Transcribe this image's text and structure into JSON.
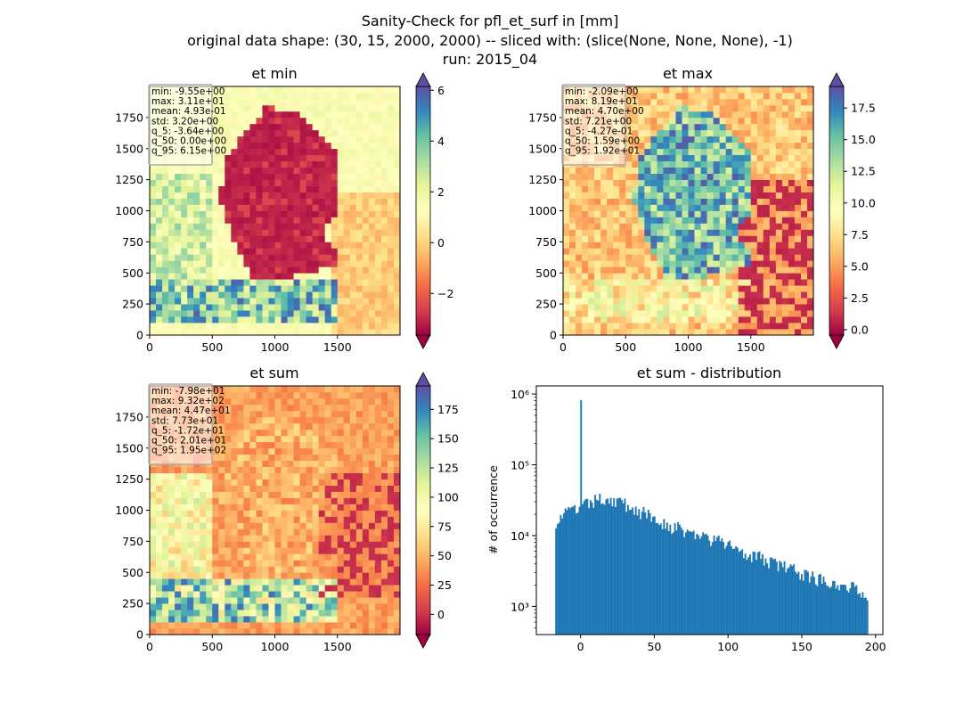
{
  "figure": {
    "title_lines": [
      "Sanity-Check for pfl_et_surf in [mm]",
      "original data shape: (30, 15, 2000, 2000) -- sliced with: (slice(None, None, None), -1)",
      "run: 2015_04"
    ]
  },
  "colormap": "Spectral",
  "chart_data": [
    {
      "type": "heatmap",
      "title": "et min",
      "x_ticks": [
        "0",
        "500",
        "1000",
        "1500"
      ],
      "y_ticks": [
        "0",
        "250",
        "500",
        "750",
        "1000",
        "1250",
        "1500",
        "1750"
      ],
      "xlim": [
        0,
        2000
      ],
      "ylim": [
        0,
        2000
      ],
      "colorbar": {
        "ticks": [
          "−2",
          "0",
          "2",
          "4",
          "6"
        ],
        "tick_values": [
          -2,
          0,
          2,
          4,
          6
        ],
        "range": [
          -3.64,
          6.15
        ],
        "extend": "both"
      },
      "stats": [
        "min: -9.55e+00",
        "max: 3.11e+01",
        "mean: 4.93e-01",
        "std: 3.20e+00",
        "q_5: -3.64e+00",
        "q_50: 0.00e+00",
        "q_95: 6.15e+00"
      ]
    },
    {
      "type": "heatmap",
      "title": "et max",
      "x_ticks": [
        "0",
        "500",
        "1000",
        "1500"
      ],
      "y_ticks": [
        "0",
        "250",
        "500",
        "750",
        "1000",
        "1250",
        "1500",
        "1750"
      ],
      "xlim": [
        0,
        2000
      ],
      "ylim": [
        0,
        2000
      ],
      "colorbar": {
        "ticks": [
          "0.0",
          "2.5",
          "5.0",
          "7.5",
          "10.0",
          "12.5",
          "15.0",
          "17.5"
        ],
        "tick_values": [
          0,
          2.5,
          5,
          7.5,
          10,
          12.5,
          15,
          17.5
        ],
        "range": [
          -0.43,
          19.2
        ],
        "extend": "both"
      },
      "stats": [
        "min: -2.09e+00",
        "max: 8.19e+01",
        "mean: 4.70e+00",
        "std: 7.21e+00",
        "q_5: -4.27e-01",
        "q_50: 1.59e+00",
        "q_95: 1.92e+01"
      ]
    },
    {
      "type": "heatmap",
      "title": "et sum",
      "x_ticks": [
        "0",
        "500",
        "1000",
        "1500"
      ],
      "y_ticks": [
        "0",
        "250",
        "500",
        "750",
        "1000",
        "1250",
        "1500",
        "1750"
      ],
      "xlim": [
        0,
        2000
      ],
      "ylim": [
        0,
        2000
      ],
      "colorbar": {
        "ticks": [
          "0",
          "25",
          "50",
          "75",
          "100",
          "125",
          "150",
          "175"
        ],
        "tick_values": [
          0,
          25,
          50,
          75,
          100,
          125,
          150,
          175
        ],
        "range": [
          -17.2,
          195
        ],
        "extend": "both"
      },
      "stats": [
        "min: -7.98e+01",
        "max: 9.32e+02",
        "mean: 4.47e+01",
        "std: 7.73e+01",
        "q_5: -1.72e+01",
        "q_50: 2.01e+01",
        "q_95: 1.95e+02"
      ]
    },
    {
      "type": "bar",
      "title": "et sum - distribution",
      "ylabel": "# of occurrence",
      "yscale": "log",
      "x_ticks": [
        "0",
        "50",
        "100",
        "150",
        "200"
      ],
      "x_tick_values": [
        0,
        50,
        100,
        150,
        200
      ],
      "y_ticks": [
        "10³",
        "10⁴",
        "10⁵",
        "10⁶"
      ],
      "y_tick_values": [
        1000,
        10000,
        100000,
        1000000
      ],
      "xlim": [
        -30,
        205
      ],
      "ylim": [
        400,
        1300000
      ],
      "bar_color": "#1f77b4",
      "spike": {
        "x": 0,
        "count": 820000
      },
      "profile": [
        {
          "x": -17.2,
          "count": 16000
        },
        {
          "x": -10,
          "count": 21000
        },
        {
          "x": -1,
          "count": 24000
        },
        {
          "x": 5,
          "count": 28000
        },
        {
          "x": 15,
          "count": 34000
        },
        {
          "x": 25,
          "count": 31000
        },
        {
          "x": 40,
          "count": 22000
        },
        {
          "x": 60,
          "count": 14000
        },
        {
          "x": 80,
          "count": 10000
        },
        {
          "x": 100,
          "count": 7500
        },
        {
          "x": 120,
          "count": 5000
        },
        {
          "x": 140,
          "count": 3500
        },
        {
          "x": 160,
          "count": 2500
        },
        {
          "x": 180,
          "count": 2000
        },
        {
          "x": 195,
          "count": 1500
        }
      ]
    }
  ]
}
